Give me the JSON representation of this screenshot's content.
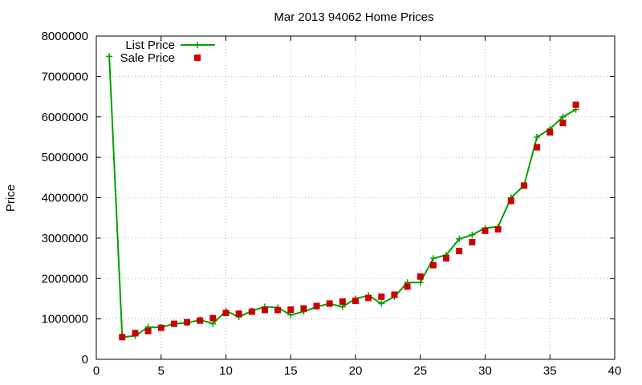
{
  "chart_data": {
    "type": "line",
    "title": "Mar 2013 94062 Home Prices",
    "xlabel": "",
    "ylabel": "Price",
    "xlim": [
      0,
      40
    ],
    "ylim": [
      0,
      8000000
    ],
    "x_ticks": [
      "0",
      "5",
      "10",
      "15",
      "20",
      "25",
      "30",
      "35",
      "40"
    ],
    "y_ticks": [
      "0",
      "1000000",
      "2000000",
      "3000000",
      "4000000",
      "5000000",
      "6000000",
      "7000000",
      "8000000"
    ],
    "grid": true,
    "legend_position": "top-left",
    "series": [
      {
        "name": "List Price",
        "style": "line-with-plus-markers",
        "color": "#00a000",
        "x": [
          1,
          2,
          3,
          4,
          5,
          6,
          7,
          8,
          9,
          10,
          11,
          12,
          13,
          14,
          15,
          16,
          17,
          18,
          19,
          20,
          21,
          22,
          23,
          24,
          25,
          26,
          27,
          28,
          29,
          30,
          31,
          32,
          33,
          34,
          35,
          36,
          37
        ],
        "values": [
          7500000,
          550000,
          580000,
          800000,
          790000,
          880000,
          900000,
          980000,
          880000,
          1200000,
          1050000,
          1200000,
          1300000,
          1280000,
          1100000,
          1180000,
          1300000,
          1380000,
          1300000,
          1500000,
          1580000,
          1380000,
          1550000,
          1900000,
          1900000,
          2500000,
          2580000,
          2980000,
          3080000,
          3250000,
          3280000,
          4000000,
          4300000,
          5500000,
          5700000,
          6000000,
          6180000
        ]
      },
      {
        "name": "Sale Price",
        "style": "square-markers",
        "color": "#cc0000",
        "x": [
          2,
          3,
          4,
          5,
          6,
          7,
          8,
          9,
          10,
          11,
          12,
          13,
          14,
          15,
          16,
          17,
          18,
          19,
          20,
          21,
          22,
          23,
          24,
          25,
          26,
          27,
          28,
          29,
          30,
          31,
          32,
          33,
          34,
          35,
          36,
          37
        ],
        "values": [
          550000,
          650000,
          700000,
          780000,
          880000,
          920000,
          960000,
          1020000,
          1150000,
          1130000,
          1180000,
          1220000,
          1220000,
          1230000,
          1260000,
          1320000,
          1380000,
          1430000,
          1450000,
          1520000,
          1550000,
          1600000,
          1800000,
          2050000,
          2330000,
          2500000,
          2680000,
          2900000,
          3180000,
          3220000,
          3920000,
          4300000,
          5250000,
          5620000,
          5850000,
          6300000
        ]
      }
    ]
  }
}
